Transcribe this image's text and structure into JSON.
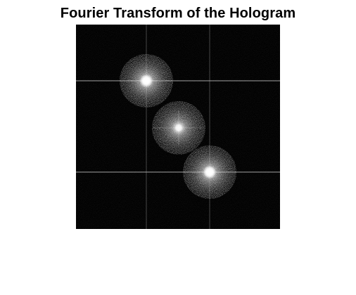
{
  "figure": {
    "title": "Fourier Transform of the Hologram"
  },
  "image": {
    "colormap": "gray",
    "background_color": "#000000",
    "spot_color": "#ffffff",
    "line_color": "#d9d9d9",
    "content": "fourier-spectrum",
    "spots": [
      "upper-left sideband",
      "central DC term",
      "lower-right sideband"
    ]
  }
}
